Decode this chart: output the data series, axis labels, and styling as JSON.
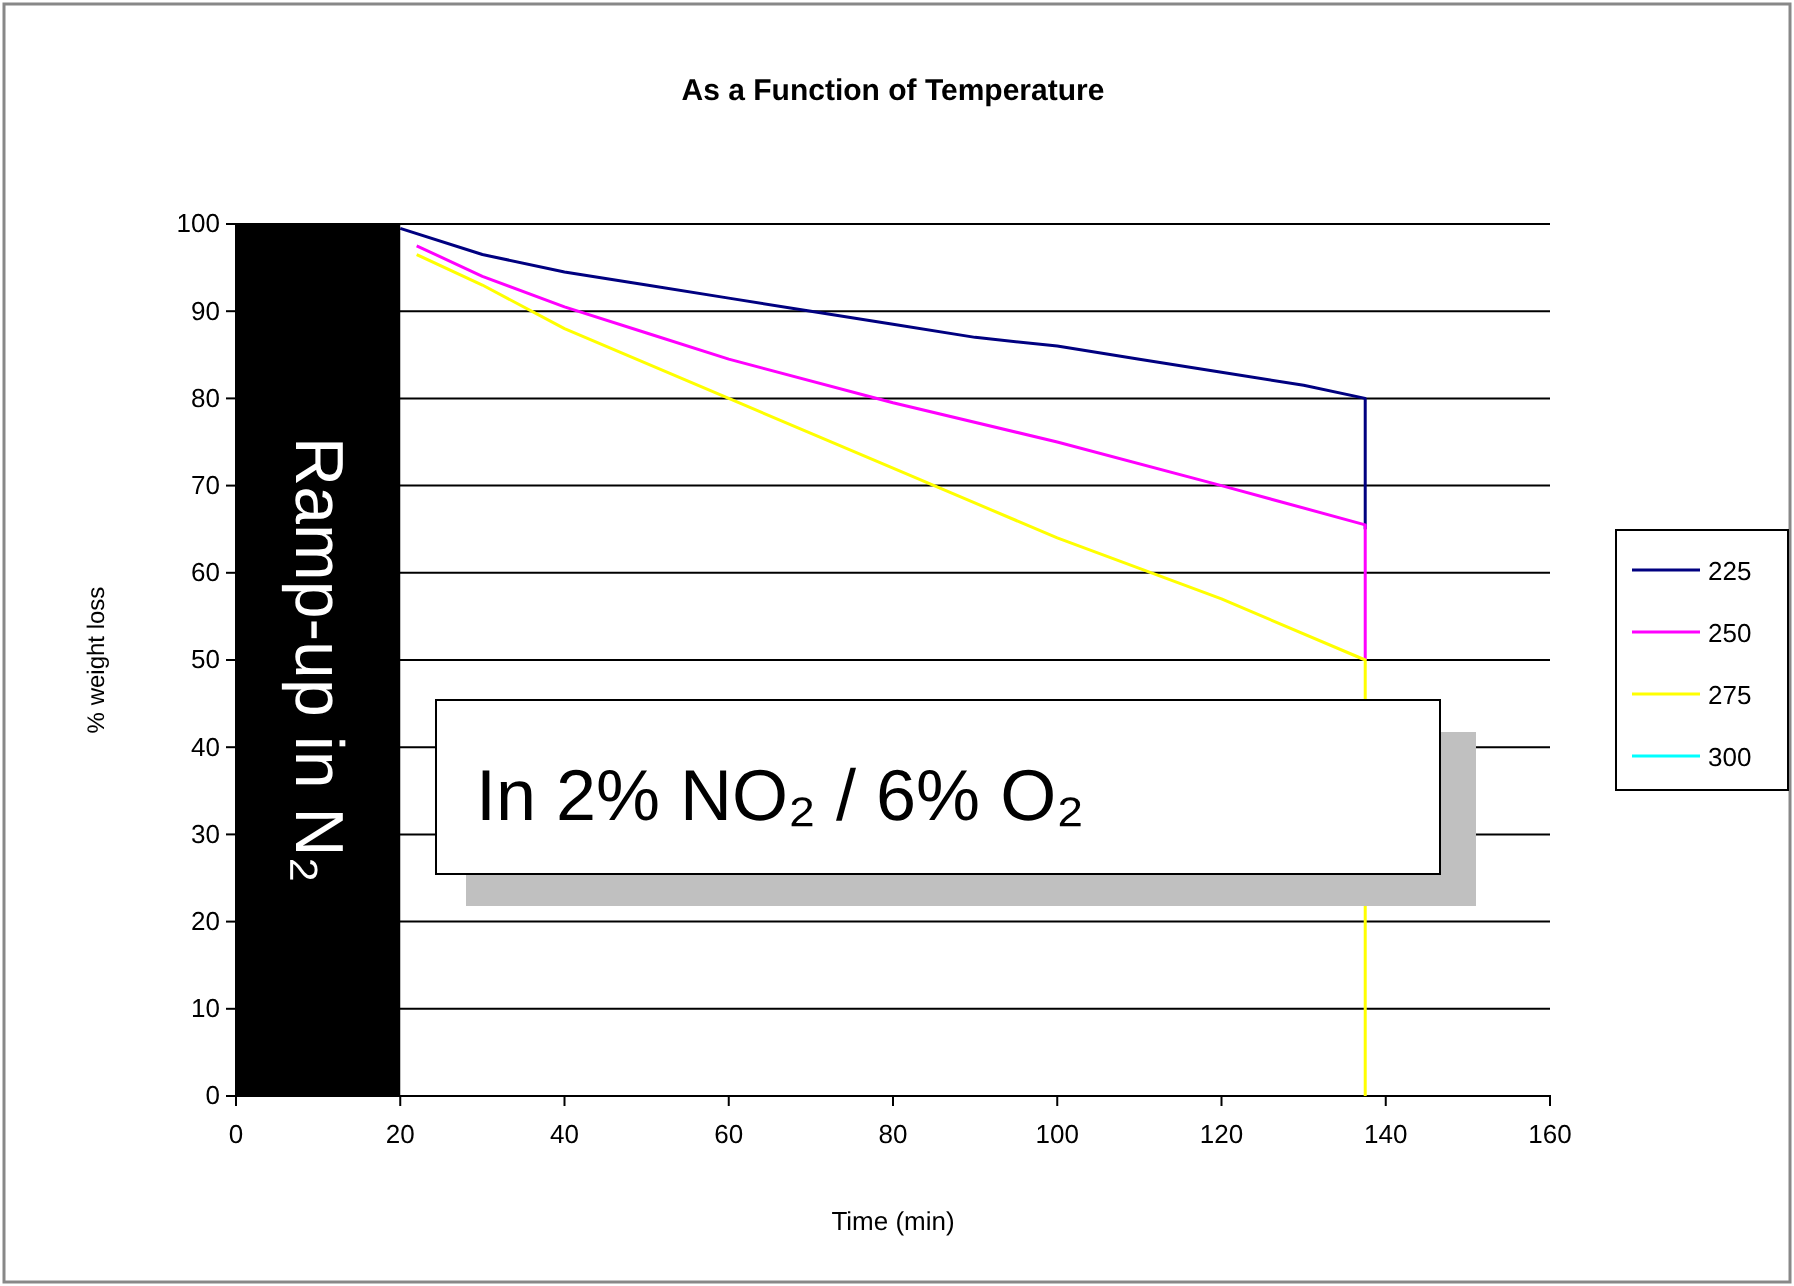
{
  "chart_data": {
    "type": "line",
    "title": "As a Function of Temperature",
    "xlabel": "Time (min)",
    "ylabel": "% weight loss",
    "xlim": [
      0,
      160
    ],
    "xticks": [
      0,
      20,
      40,
      60,
      80,
      100,
      120,
      140,
      160
    ],
    "ylim": [
      0,
      100
    ],
    "yticks": [
      0,
      10,
      20,
      30,
      40,
      50,
      60,
      70,
      80,
      90,
      100
    ],
    "grid": "y",
    "legend": "right",
    "marker": "none",
    "line_style": "solid",
    "series": [
      {
        "name": "225",
        "color": "#000080",
        "x": [
          20,
          30,
          40,
          50,
          60,
          70,
          80,
          90,
          100,
          110,
          120,
          130,
          137.5,
          137.5
        ],
        "values": [
          99.5,
          96.5,
          94.5,
          93,
          91.5,
          90,
          88.5,
          87,
          86,
          84.5,
          83,
          81.5,
          80,
          65
        ]
      },
      {
        "name": "250",
        "color": "#ff00ff",
        "x": [
          22,
          30,
          40,
          50,
          60,
          80,
          100,
          120,
          137.5,
          137.5
        ],
        "values": [
          97.5,
          94,
          90.5,
          87.5,
          84.5,
          79.5,
          75,
          70,
          65.5,
          50
        ]
      },
      {
        "name": "275",
        "color": "#ffff00",
        "x": [
          22,
          30,
          40,
          60,
          80,
          100,
          120,
          137.5,
          137.5
        ],
        "values": [
          96.5,
          93,
          88,
          80,
          72,
          64,
          57,
          50,
          0
        ]
      },
      {
        "name": "300",
        "color": "#00ffff"
      }
    ],
    "bands": [
      {
        "axis": "x",
        "from": 0,
        "to": 20,
        "label": "Ramp-up in N₂",
        "color": "#000000"
      }
    ],
    "annotations": [
      "In 2% NO₂ / 6% O₂"
    ]
  }
}
